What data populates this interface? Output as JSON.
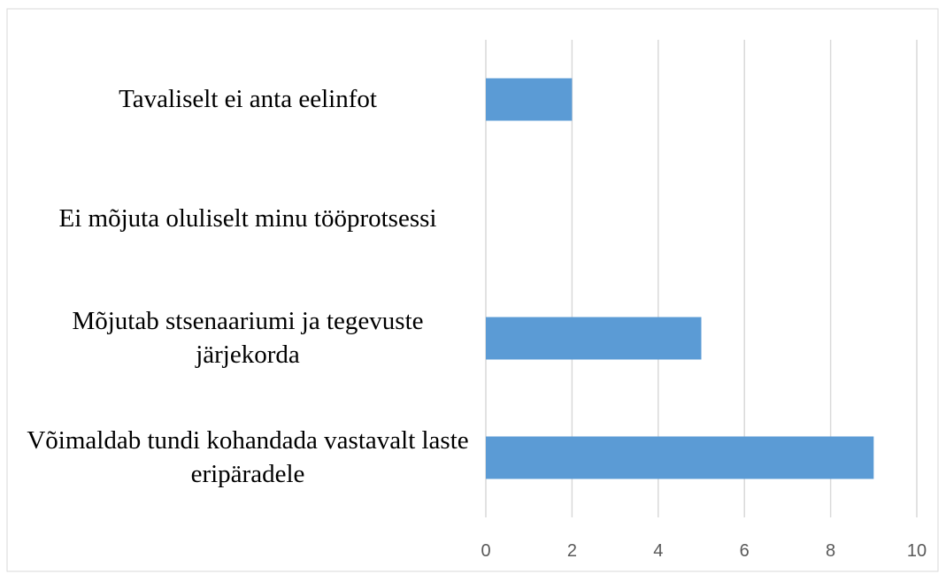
{
  "chart_data": {
    "type": "bar",
    "orientation": "horizontal",
    "categories": [
      "Tavaliselt ei anta eelinfot",
      "Ei mõjuta oluliselt minu tööprotsessi",
      "Mõjutab stsenaariumi ja tegevuste järjekorda",
      "Võimaldab tundi kohandada vastavalt laste eripäradele"
    ],
    "values": [
      2,
      0,
      5,
      9
    ],
    "color": "#5b9bd5",
    "xlim": [
      0,
      10
    ],
    "xticks": [
      0,
      2,
      4,
      6,
      8,
      10
    ],
    "grid": true
  }
}
